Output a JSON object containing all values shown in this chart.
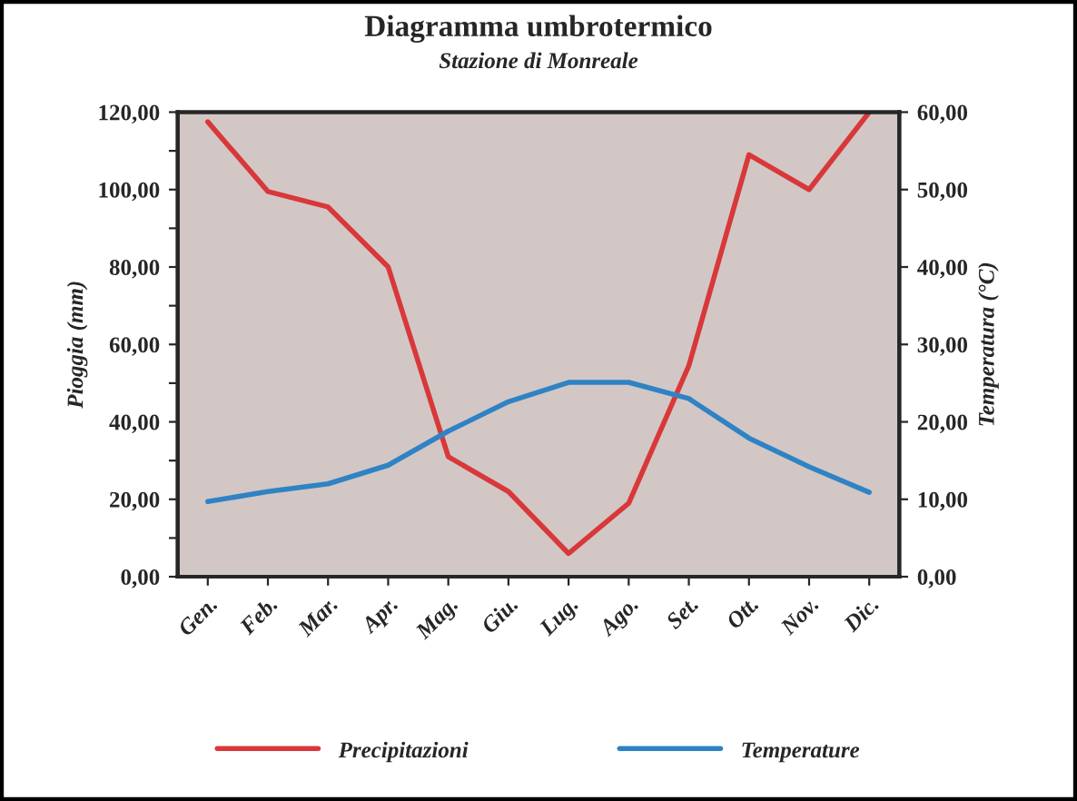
{
  "chart_data": {
    "type": "line",
    "title": "Diagramma umbrotermico",
    "subtitle": "Stazione di Monreale",
    "ylabel": "Pioggia (mm)",
    "y2label": "Temperatura (°C)",
    "categories": [
      "Gen.",
      "Feb.",
      "Mar.",
      "Apr.",
      "Mag.",
      "Giu.",
      "Lug.",
      "Ago.",
      "Set.",
      "Ott.",
      "Nov.",
      "Dic."
    ],
    "series": [
      {
        "name": "Precipitazioni",
        "color": "#d9383a",
        "values": [
          117.5,
          99.5,
          95.5,
          80,
          31,
          22,
          6,
          19,
          54.5,
          109,
          100,
          120
        ]
      },
      {
        "name": "Temperature",
        "color": "#2f83c4",
        "axis": "y2",
        "values": [
          9.7,
          11,
          12,
          14.4,
          18.8,
          22.6,
          25.1,
          25.1,
          23,
          17.9,
          14.2,
          10.9
        ]
      }
    ],
    "ylim": [
      0,
      120
    ],
    "yticks": [
      {
        "value": 0,
        "label": "0,00"
      },
      {
        "value": 10,
        "label": null
      },
      {
        "value": 20,
        "label": "20,00"
      },
      {
        "value": 30,
        "label": null
      },
      {
        "value": 40,
        "label": "40,00"
      },
      {
        "value": 50,
        "label": null
      },
      {
        "value": 60,
        "label": "60,00"
      },
      {
        "value": 70,
        "label": null
      },
      {
        "value": 80,
        "label": "80,00"
      },
      {
        "value": 90,
        "label": null
      },
      {
        "value": 100,
        "label": "100,00"
      },
      {
        "value": 110,
        "label": null
      },
      {
        "value": 120,
        "label": "120,00"
      }
    ],
    "y2lim": [
      0,
      60
    ],
    "y2ticks": [
      {
        "value": 0,
        "label": "0,00"
      },
      {
        "value": 10,
        "label": "10,00"
      },
      {
        "value": 20,
        "label": "20,00"
      },
      {
        "value": 30,
        "label": "30,00"
      },
      {
        "value": 40,
        "label": "40,00"
      },
      {
        "value": 50,
        "label": "50,00"
      },
      {
        "value": 60,
        "label": "60,00"
      }
    ],
    "grid": false,
    "legend": "bottom",
    "marker": "none",
    "line_style": "solid"
  }
}
